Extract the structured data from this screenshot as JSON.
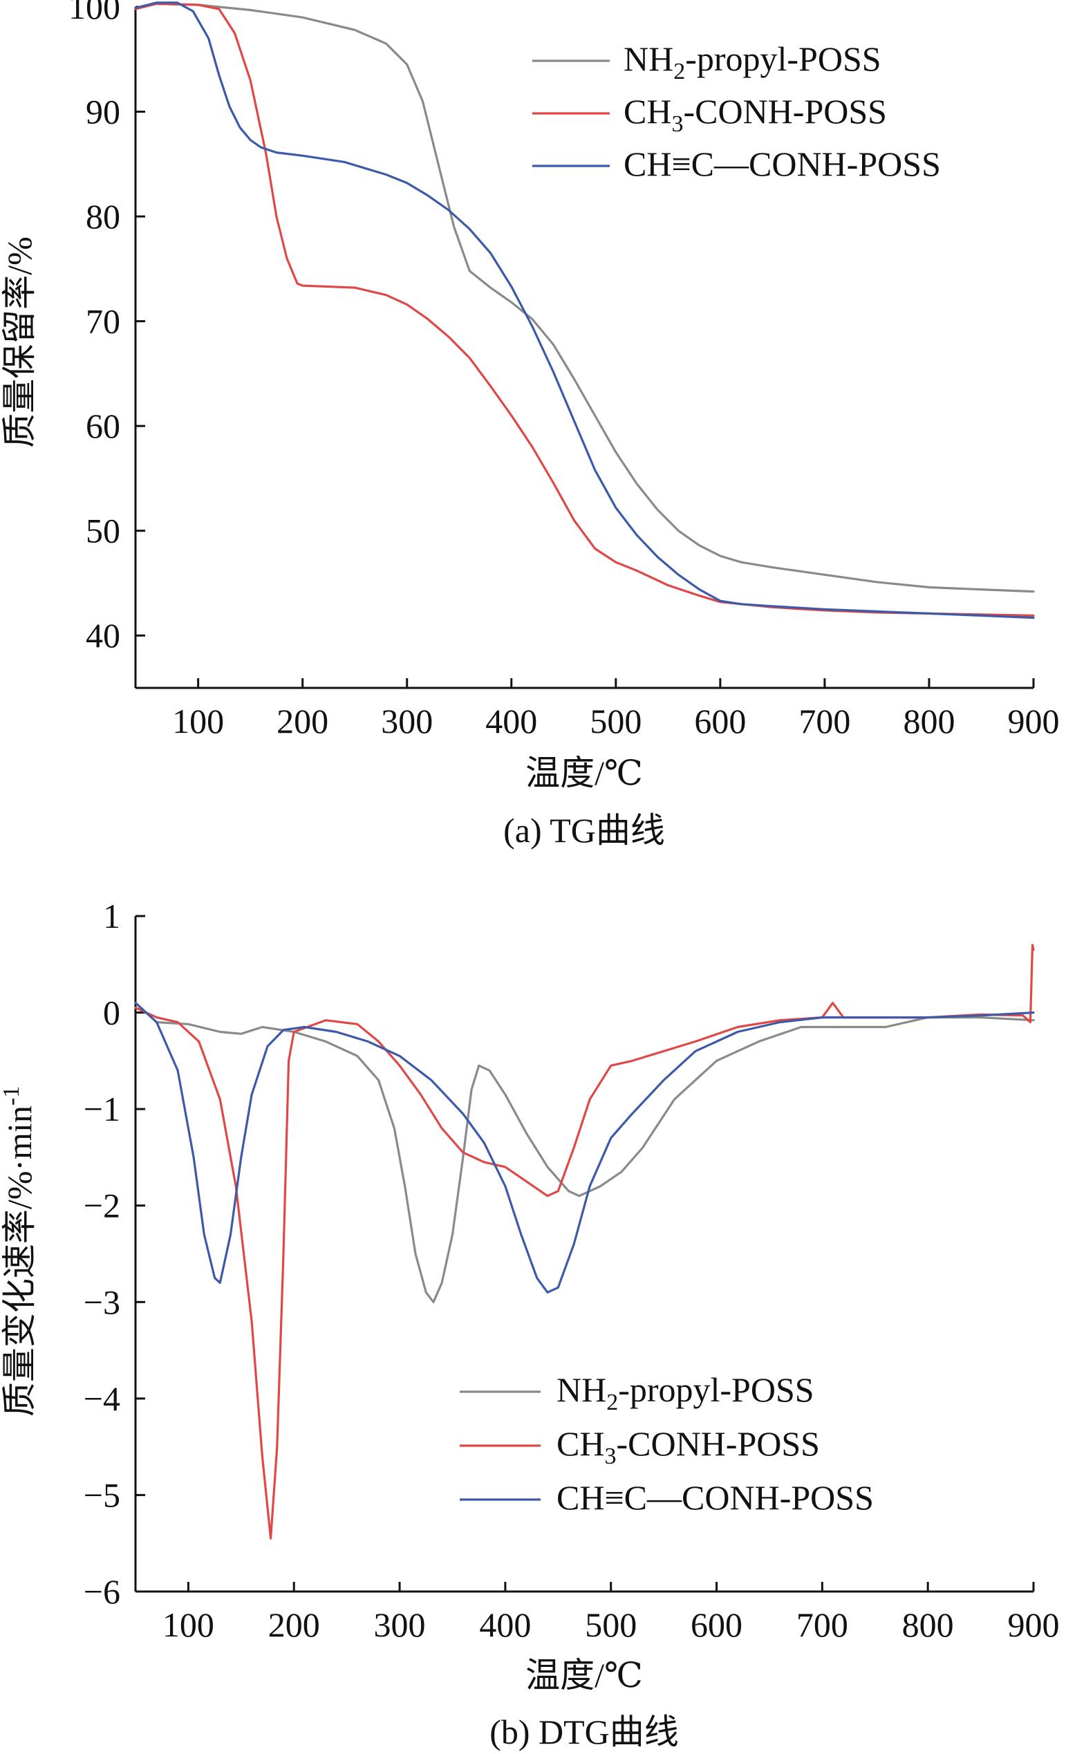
{
  "chart_data": [
    {
      "id": "tg",
      "type": "line",
      "caption": "(a) TG曲线",
      "xlabel": "温度/℃",
      "ylabel": "质量保留率/%",
      "xlim": [
        40,
        900
      ],
      "ylim": [
        35,
        100
      ],
      "xticks": [
        100,
        200,
        300,
        400,
        500,
        600,
        700,
        800,
        900
      ],
      "yticks": [
        40,
        50,
        60,
        70,
        80,
        90,
        100
      ],
      "grid": false,
      "legend_position": "top-right",
      "series": [
        {
          "name": "NH2-propyl-POSS",
          "name_parts": {
            "pre": "NH",
            "sub": "2",
            "post": "-propyl-POSS"
          },
          "color": "#8a8a8a",
          "points": [
            [
              40,
              99.8
            ],
            [
              60,
              100.3
            ],
            [
              100,
              100.2
            ],
            [
              150,
              99.7
            ],
            [
              200,
              99.0
            ],
            [
              250,
              97.8
            ],
            [
              280,
              96.5
            ],
            [
              300,
              94.5
            ],
            [
              315,
              91
            ],
            [
              330,
              85
            ],
            [
              345,
              79
            ],
            [
              360,
              74.8
            ],
            [
              380,
              73.2
            ],
            [
              400,
              71.8
            ],
            [
              420,
              70.2
            ],
            [
              440,
              67.8
            ],
            [
              460,
              64.5
            ],
            [
              480,
              61
            ],
            [
              500,
              57.5
            ],
            [
              520,
              54.5
            ],
            [
              540,
              52
            ],
            [
              560,
              50
            ],
            [
              580,
              48.6
            ],
            [
              600,
              47.6
            ],
            [
              620,
              47
            ],
            [
              650,
              46.5
            ],
            [
              700,
              45.8
            ],
            [
              750,
              45.1
            ],
            [
              800,
              44.6
            ],
            [
              850,
              44.4
            ],
            [
              900,
              44.2
            ]
          ]
        },
        {
          "name": "CH3-CONH-POSS",
          "name_parts": {
            "pre": "CH",
            "sub": "3",
            "post": "-CONH-POSS"
          },
          "color": "#e04848",
          "points": [
            [
              40,
              99.8
            ],
            [
              60,
              100.3
            ],
            [
              100,
              100.2
            ],
            [
              120,
              99.8
            ],
            [
              135,
              97.5
            ],
            [
              150,
              93
            ],
            [
              165,
              86
            ],
            [
              175,
              80
            ],
            [
              185,
              76
            ],
            [
              195,
              73.6
            ],
            [
              200,
              73.4
            ],
            [
              250,
              73.2
            ],
            [
              280,
              72.5
            ],
            [
              300,
              71.6
            ],
            [
              320,
              70.2
            ],
            [
              340,
              68.5
            ],
            [
              360,
              66.5
            ],
            [
              380,
              63.8
            ],
            [
              400,
              61
            ],
            [
              420,
              58
            ],
            [
              440,
              54.6
            ],
            [
              460,
              51
            ],
            [
              480,
              48.3
            ],
            [
              500,
              47
            ],
            [
              520,
              46.2
            ],
            [
              550,
              44.8
            ],
            [
              580,
              43.8
            ],
            [
              600,
              43.2
            ],
            [
              650,
              42.7
            ],
            [
              700,
              42.4
            ],
            [
              750,
              42.2
            ],
            [
              800,
              42.1
            ],
            [
              850,
              42
            ],
            [
              900,
              41.9
            ]
          ]
        },
        {
          "name": "CH≡C—CONH-POSS",
          "name_parts": {
            "pre": "CH",
            "sub": "",
            "post": "≡C—CONH-POSS"
          },
          "color": "#3c5aa8",
          "points": [
            [
              40,
              99.9
            ],
            [
              60,
              100.4
            ],
            [
              80,
              100.4
            ],
            [
              95,
              99.6
            ],
            [
              110,
              97
            ],
            [
              120,
              93.5
            ],
            [
              130,
              90.5
            ],
            [
              140,
              88.5
            ],
            [
              150,
              87.3
            ],
            [
              160,
              86.6
            ],
            [
              175,
              86.1
            ],
            [
              200,
              85.8
            ],
            [
              240,
              85.2
            ],
            [
              280,
              84
            ],
            [
              300,
              83.2
            ],
            [
              320,
              82
            ],
            [
              340,
              80.6
            ],
            [
              360,
              78.8
            ],
            [
              380,
              76.5
            ],
            [
              400,
              73.3
            ],
            [
              420,
              69.5
            ],
            [
              440,
              65.2
            ],
            [
              460,
              60.5
            ],
            [
              480,
              55.8
            ],
            [
              500,
              52.2
            ],
            [
              520,
              49.6
            ],
            [
              540,
              47.5
            ],
            [
              560,
              45.8
            ],
            [
              580,
              44.4
            ],
            [
              600,
              43.3
            ],
            [
              620,
              43
            ],
            [
              650,
              42.8
            ],
            [
              700,
              42.5
            ],
            [
              750,
              42.3
            ],
            [
              800,
              42.1
            ],
            [
              850,
              41.9
            ],
            [
              900,
              41.7
            ]
          ]
        }
      ]
    },
    {
      "id": "dtg",
      "type": "line",
      "caption": "(b) DTG曲线",
      "xlabel": "温度/℃",
      "ylabel_parts": {
        "pre": "质量变化速率/%·min",
        "sup": "-1"
      },
      "xlim": [
        50,
        900
      ],
      "ylim": [
        -6,
        1
      ],
      "xticks": [
        100,
        200,
        300,
        400,
        500,
        600,
        700,
        800,
        900
      ],
      "yticks": [
        1,
        0,
        -1,
        -2,
        -3,
        -4,
        -5,
        -6
      ],
      "ytick_labels": [
        "1",
        "0",
        "−1",
        "−2",
        "−3",
        "−4",
        "−5",
        "−6"
      ],
      "grid": false,
      "legend_position": "bottom-right",
      "series": [
        {
          "name": "NH2-propyl-POSS",
          "name_parts": {
            "pre": "NH",
            "sub": "2",
            "post": "-propyl-POSS"
          },
          "color": "#8a8a8a",
          "points": [
            [
              50,
              0.1
            ],
            [
              70,
              -0.1
            ],
            [
              100,
              -0.12
            ],
            [
              130,
              -0.2
            ],
            [
              150,
              -0.22
            ],
            [
              170,
              -0.15
            ],
            [
              200,
              -0.2
            ],
            [
              230,
              -0.3
            ],
            [
              260,
              -0.45
            ],
            [
              280,
              -0.7
            ],
            [
              295,
              -1.2
            ],
            [
              305,
              -1.8
            ],
            [
              315,
              -2.5
            ],
            [
              325,
              -2.9
            ],
            [
              332,
              -3.0
            ],
            [
              340,
              -2.8
            ],
            [
              350,
              -2.3
            ],
            [
              360,
              -1.5
            ],
            [
              368,
              -0.8
            ],
            [
              375,
              -0.55
            ],
            [
              385,
              -0.6
            ],
            [
              400,
              -0.85
            ],
            [
              420,
              -1.25
            ],
            [
              440,
              -1.6
            ],
            [
              460,
              -1.85
            ],
            [
              470,
              -1.9
            ],
            [
              490,
              -1.8
            ],
            [
              510,
              -1.65
            ],
            [
              530,
              -1.4
            ],
            [
              560,
              -0.9
            ],
            [
              600,
              -0.5
            ],
            [
              640,
              -0.3
            ],
            [
              680,
              -0.15
            ],
            [
              720,
              -0.15
            ],
            [
              760,
              -0.15
            ],
            [
              800,
              -0.05
            ],
            [
              850,
              -0.05
            ],
            [
              900,
              -0.08
            ]
          ]
        },
        {
          "name": "CH3-CONH-POSS",
          "name_parts": {
            "pre": "CH",
            "sub": "3",
            "post": "-CONH-POSS"
          },
          "color": "#e04848",
          "points": [
            [
              50,
              0.05
            ],
            [
              70,
              -0.05
            ],
            [
              90,
              -0.1
            ],
            [
              110,
              -0.3
            ],
            [
              130,
              -0.9
            ],
            [
              145,
              -1.8
            ],
            [
              160,
              -3.2
            ],
            [
              170,
              -4.6
            ],
            [
              178,
              -5.45
            ],
            [
              184,
              -4.5
            ],
            [
              190,
              -2.5
            ],
            [
              195,
              -0.5
            ],
            [
              200,
              -0.2
            ],
            [
              230,
              -0.08
            ],
            [
              260,
              -0.12
            ],
            [
              280,
              -0.3
            ],
            [
              300,
              -0.55
            ],
            [
              320,
              -0.85
            ],
            [
              340,
              -1.2
            ],
            [
              360,
              -1.45
            ],
            [
              380,
              -1.55
            ],
            [
              400,
              -1.6
            ],
            [
              420,
              -1.75
            ],
            [
              440,
              -1.9
            ],
            [
              450,
              -1.85
            ],
            [
              465,
              -1.4
            ],
            [
              480,
              -0.9
            ],
            [
              500,
              -0.55
            ],
            [
              520,
              -0.5
            ],
            [
              550,
              -0.4
            ],
            [
              580,
              -0.3
            ],
            [
              620,
              -0.15
            ],
            [
              660,
              -0.08
            ],
            [
              700,
              -0.05
            ],
            [
              710,
              0.1
            ],
            [
              720,
              -0.05
            ],
            [
              760,
              -0.05
            ],
            [
              800,
              -0.05
            ],
            [
              850,
              -0.02
            ],
            [
              890,
              -0.03
            ],
            [
              897,
              -0.1
            ],
            [
              899,
              0.7
            ],
            [
              900,
              0.65
            ]
          ]
        },
        {
          "name": "CH≡C—CONH-POSS",
          "name_parts": {
            "pre": "CH",
            "sub": "",
            "post": "≡C—CONH-POSS"
          },
          "color": "#3c5aa8",
          "points": [
            [
              50,
              0.1
            ],
            [
              70,
              -0.1
            ],
            [
              90,
              -0.6
            ],
            [
              105,
              -1.5
            ],
            [
              115,
              -2.3
            ],
            [
              125,
              -2.75
            ],
            [
              130,
              -2.8
            ],
            [
              140,
              -2.3
            ],
            [
              150,
              -1.5
            ],
            [
              160,
              -0.85
            ],
            [
              175,
              -0.35
            ],
            [
              190,
              -0.18
            ],
            [
              210,
              -0.15
            ],
            [
              240,
              -0.2
            ],
            [
              270,
              -0.3
            ],
            [
              300,
              -0.45
            ],
            [
              330,
              -0.7
            ],
            [
              360,
              -1.05
            ],
            [
              380,
              -1.35
            ],
            [
              400,
              -1.8
            ],
            [
              415,
              -2.3
            ],
            [
              430,
              -2.75
            ],
            [
              440,
              -2.9
            ],
            [
              450,
              -2.85
            ],
            [
              465,
              -2.4
            ],
            [
              480,
              -1.8
            ],
            [
              500,
              -1.3
            ],
            [
              520,
              -1.05
            ],
            [
              550,
              -0.7
            ],
            [
              580,
              -0.4
            ],
            [
              620,
              -0.2
            ],
            [
              660,
              -0.1
            ],
            [
              700,
              -0.05
            ],
            [
              750,
              -0.05
            ],
            [
              800,
              -0.05
            ],
            [
              850,
              -0.03
            ],
            [
              900,
              0.0
            ]
          ]
        }
      ]
    }
  ]
}
